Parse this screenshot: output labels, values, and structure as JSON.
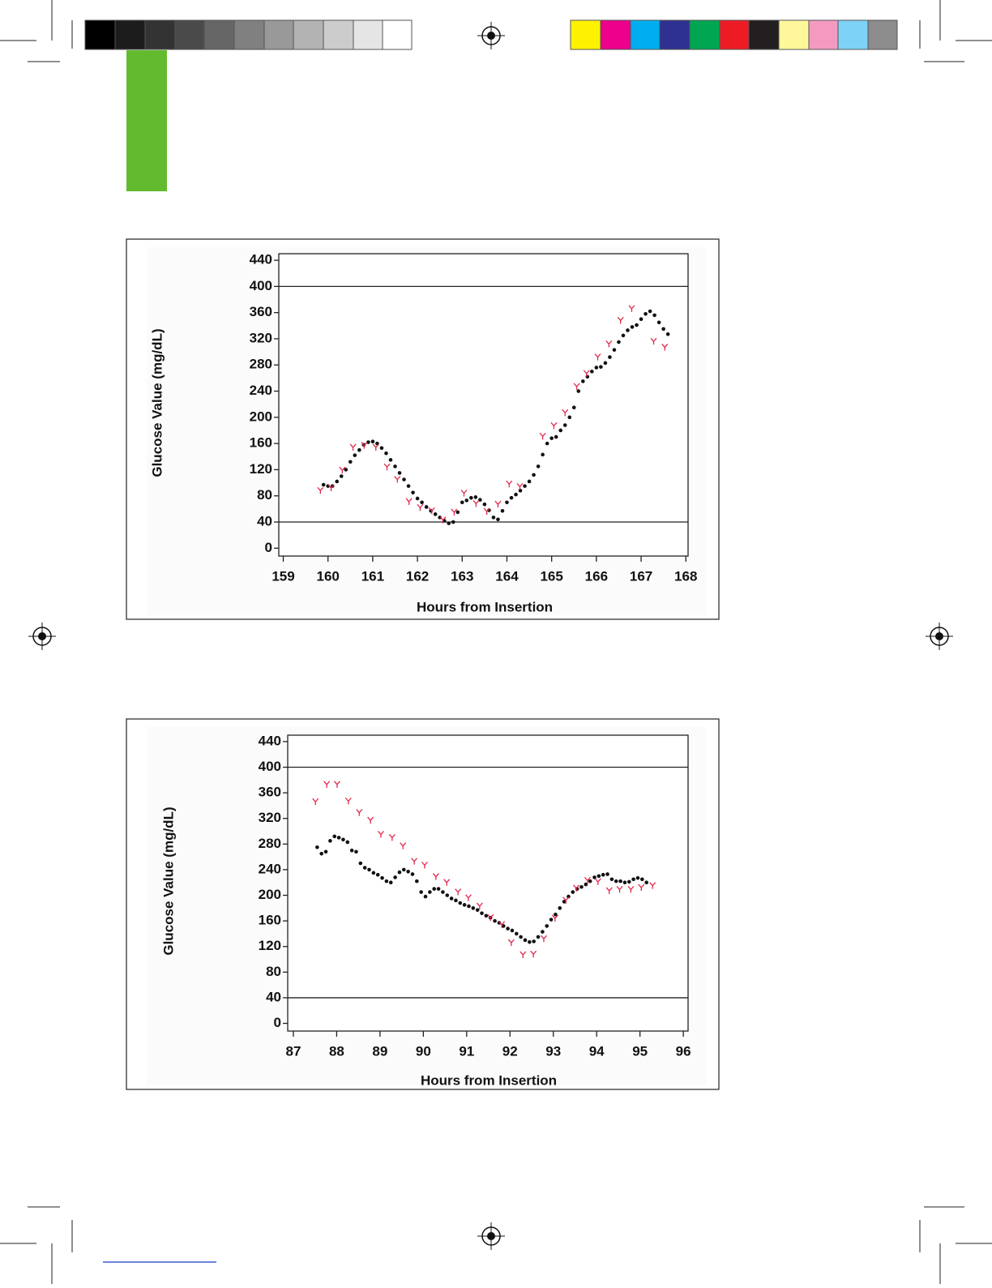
{
  "chart_data": [
    {
      "type": "scatter",
      "y_label": "Glucose Value (mg/dL)",
      "x_label": "Hours from Insertion",
      "xlim": [
        158.9,
        168.05
      ],
      "ylim": [
        -12,
        450
      ],
      "xticks": [
        159,
        160,
        161,
        162,
        163,
        164,
        165,
        166,
        167,
        168
      ],
      "yticks": [
        0,
        40,
        80,
        120,
        160,
        200,
        240,
        280,
        320,
        360,
        400,
        440
      ],
      "hlines": [
        40,
        400
      ],
      "series": [
        {
          "color": "#111111",
          "marker": "dot",
          "x": [
            159.9,
            160.0,
            160.1,
            160.2,
            160.3,
            160.4,
            160.5,
            160.6,
            160.7,
            160.8,
            160.9,
            161.0,
            161.1,
            161.2,
            161.3,
            161.4,
            161.5,
            161.6,
            161.7,
            161.8,
            161.9,
            162.0,
            162.1,
            162.2,
            162.3,
            162.4,
            162.5,
            162.6,
            162.7,
            162.8,
            162.9,
            163.0,
            163.1,
            163.2,
            163.3,
            163.4,
            163.5,
            163.6,
            163.7,
            163.8,
            163.9,
            164.0,
            164.1,
            164.2,
            164.3,
            164.4,
            164.5,
            164.6,
            164.7,
            164.8,
            164.9,
            165.0,
            165.1,
            165.2,
            165.3,
            165.4,
            165.5,
            165.6,
            165.7,
            165.8,
            165.9,
            166.0,
            166.1,
            166.2,
            166.3,
            166.4,
            166.5,
            166.6,
            166.7,
            166.8,
            166.9,
            167.0,
            167.1,
            167.2,
            167.3,
            167.4,
            167.5,
            167.6
          ],
          "values": [
            97,
            95,
            95,
            102,
            110,
            120,
            132,
            142,
            150,
            158,
            162,
            163,
            160,
            153,
            145,
            135,
            125,
            115,
            105,
            95,
            85,
            76,
            70,
            63,
            57,
            52,
            47,
            42,
            38,
            40,
            55,
            70,
            73,
            77,
            78,
            74,
            67,
            58,
            47,
            44,
            57,
            70,
            77,
            82,
            88,
            95,
            102,
            112,
            125,
            143,
            160,
            168,
            170,
            180,
            188,
            200,
            215,
            240,
            255,
            262,
            270,
            276,
            277,
            283,
            292,
            303,
            315,
            325,
            333,
            338,
            341,
            350,
            358,
            362,
            356,
            345,
            335,
            327
          ]
        },
        {
          "color": "#e0284a",
          "marker": "Y",
          "x": [
            159.83,
            160.07,
            160.32,
            160.56,
            160.81,
            161.07,
            161.32,
            161.55,
            161.81,
            162.06,
            162.32,
            162.57,
            162.82,
            163.04,
            163.31,
            163.55,
            163.8,
            164.05,
            164.29,
            164.8,
            165.05,
            165.3,
            165.56,
            165.78,
            166.03,
            166.28,
            166.54,
            166.79,
            167.28,
            167.53
          ],
          "values": [
            88,
            92,
            119,
            154,
            157,
            154,
            124,
            105,
            71,
            62,
            57,
            43,
            55,
            84,
            68,
            56,
            67,
            98,
            94,
            171,
            187,
            207,
            247,
            267,
            292,
            312,
            348,
            366,
            316,
            307
          ]
        }
      ]
    },
    {
      "type": "scatter",
      "y_label": "Glucose Value (mg/dL)",
      "x_label": "Hours from Insertion",
      "xlim": [
        86.87,
        96.11
      ],
      "ylim": [
        -12,
        450
      ],
      "xticks": [
        87,
        88,
        89,
        90,
        91,
        92,
        93,
        94,
        95,
        96
      ],
      "yticks": [
        0,
        40,
        80,
        120,
        160,
        200,
        240,
        280,
        320,
        360,
        400,
        440
      ],
      "hlines": [
        40,
        400
      ],
      "series": [
        {
          "color": "#111111",
          "marker": "dot",
          "x": [
            87.55,
            87.65,
            87.75,
            87.85,
            87.95,
            88.05,
            88.15,
            88.25,
            88.35,
            88.45,
            88.55,
            88.65,
            88.75,
            88.85,
            88.95,
            89.05,
            89.15,
            89.25,
            89.35,
            89.45,
            89.55,
            89.65,
            89.75,
            89.85,
            89.95,
            90.05,
            90.15,
            90.25,
            90.35,
            90.45,
            90.55,
            90.65,
            90.75,
            90.85,
            90.95,
            91.05,
            91.15,
            91.25,
            91.35,
            91.45,
            91.55,
            91.65,
            91.75,
            91.85,
            91.95,
            92.05,
            92.15,
            92.25,
            92.35,
            92.45,
            92.55,
            92.65,
            92.75,
            92.85,
            92.95,
            93.05,
            93.15,
            93.25,
            93.35,
            93.45,
            93.55,
            93.65,
            93.75,
            93.85,
            93.95,
            94.05,
            94.15,
            94.25,
            94.35,
            94.45,
            94.55,
            94.65,
            94.75,
            94.85,
            94.95,
            95.05,
            95.15
          ],
          "values": [
            275,
            265,
            268,
            285,
            292,
            290,
            287,
            283,
            270,
            268,
            250,
            243,
            240,
            235,
            232,
            227,
            222,
            220,
            228,
            236,
            240,
            237,
            233,
            222,
            205,
            198,
            205,
            210,
            210,
            205,
            200,
            195,
            192,
            188,
            185,
            183,
            180,
            177,
            172,
            168,
            165,
            160,
            157,
            152,
            148,
            145,
            140,
            135,
            130,
            127,
            128,
            135,
            143,
            152,
            162,
            170,
            180,
            190,
            198,
            205,
            210,
            213,
            217,
            222,
            228,
            230,
            232,
            233,
            225,
            222,
            222,
            220,
            221,
            225,
            227,
            225,
            220
          ]
        },
        {
          "color": "#e0284a",
          "marker": "Y",
          "x": [
            87.51,
            87.77,
            88.01,
            88.27,
            88.52,
            88.78,
            89.02,
            89.28,
            89.53,
            89.79,
            90.03,
            90.29,
            90.54,
            90.8,
            91.04,
            91.3,
            91.55,
            91.81,
            92.03,
            92.3,
            92.54,
            92.78,
            93.04,
            93.29,
            93.53,
            93.79,
            94.03,
            94.29,
            94.53,
            94.79,
            95.03,
            95.29
          ],
          "values": [
            346,
            373,
            373,
            347,
            329,
            317,
            295,
            290,
            277,
            253,
            247,
            229,
            220,
            205,
            196,
            183,
            165,
            154,
            126,
            107,
            108,
            132,
            164,
            192,
            211,
            223,
            221,
            207,
            209,
            209,
            212,
            215
          ]
        }
      ]
    }
  ]
}
